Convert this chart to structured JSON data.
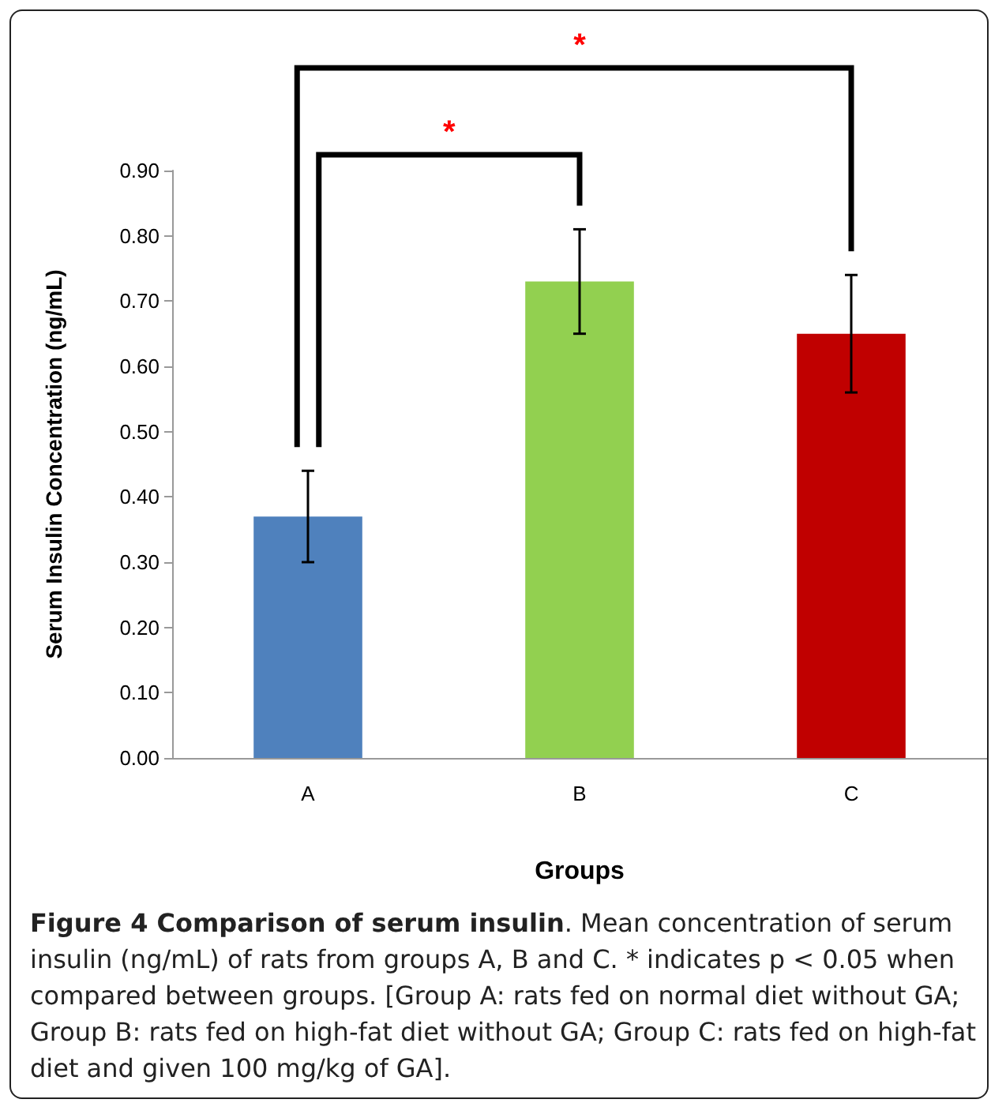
{
  "chart_data": {
    "type": "bar",
    "xlabel": "Groups",
    "ylabel": "Serum Insulin Concentration (ng/mL)",
    "categories": [
      "A",
      "B",
      "C"
    ],
    "values": [
      0.37,
      0.73,
      0.65
    ],
    "colors": [
      "#4f81bd",
      "#92d050",
      "#c00000"
    ],
    "errors": [
      [
        0.3,
        0.44
      ],
      [
        0.65,
        0.81
      ],
      [
        0.56,
        0.74
      ]
    ],
    "ylim": [
      0,
      0.9
    ],
    "yticks": [
      {
        "value": 0,
        "label": "0.00"
      },
      {
        "value": 0.1,
        "label": "0.10"
      },
      {
        "value": 0.2,
        "label": "0.20"
      },
      {
        "value": 0.3,
        "label": "0.30"
      },
      {
        "value": 0.4,
        "label": "0.40"
      },
      {
        "value": 0.5,
        "label": "0.50"
      },
      {
        "value": 0.6,
        "label": "0.60"
      },
      {
        "value": 0.7,
        "label": "0.70"
      },
      {
        "value": 0.8,
        "label": "0.80"
      },
      {
        "value": 0.9,
        "label": "0.90"
      }
    ],
    "grid": false,
    "annotations": [
      "*",
      "*",
      "Figure 4 Comparison of serum insulin",
      ". Mean concentration of serum insulin (ng/mL) of rats from groups A, B and C. * indicates p < 0.05 when compared between groups. [Group A: rats fed on normal diet without GA; Group B: rats fed on high-fat diet without GA; Group C: rats fed on high-fat diet and given 100 mg/kg of GA]."
    ]
  }
}
